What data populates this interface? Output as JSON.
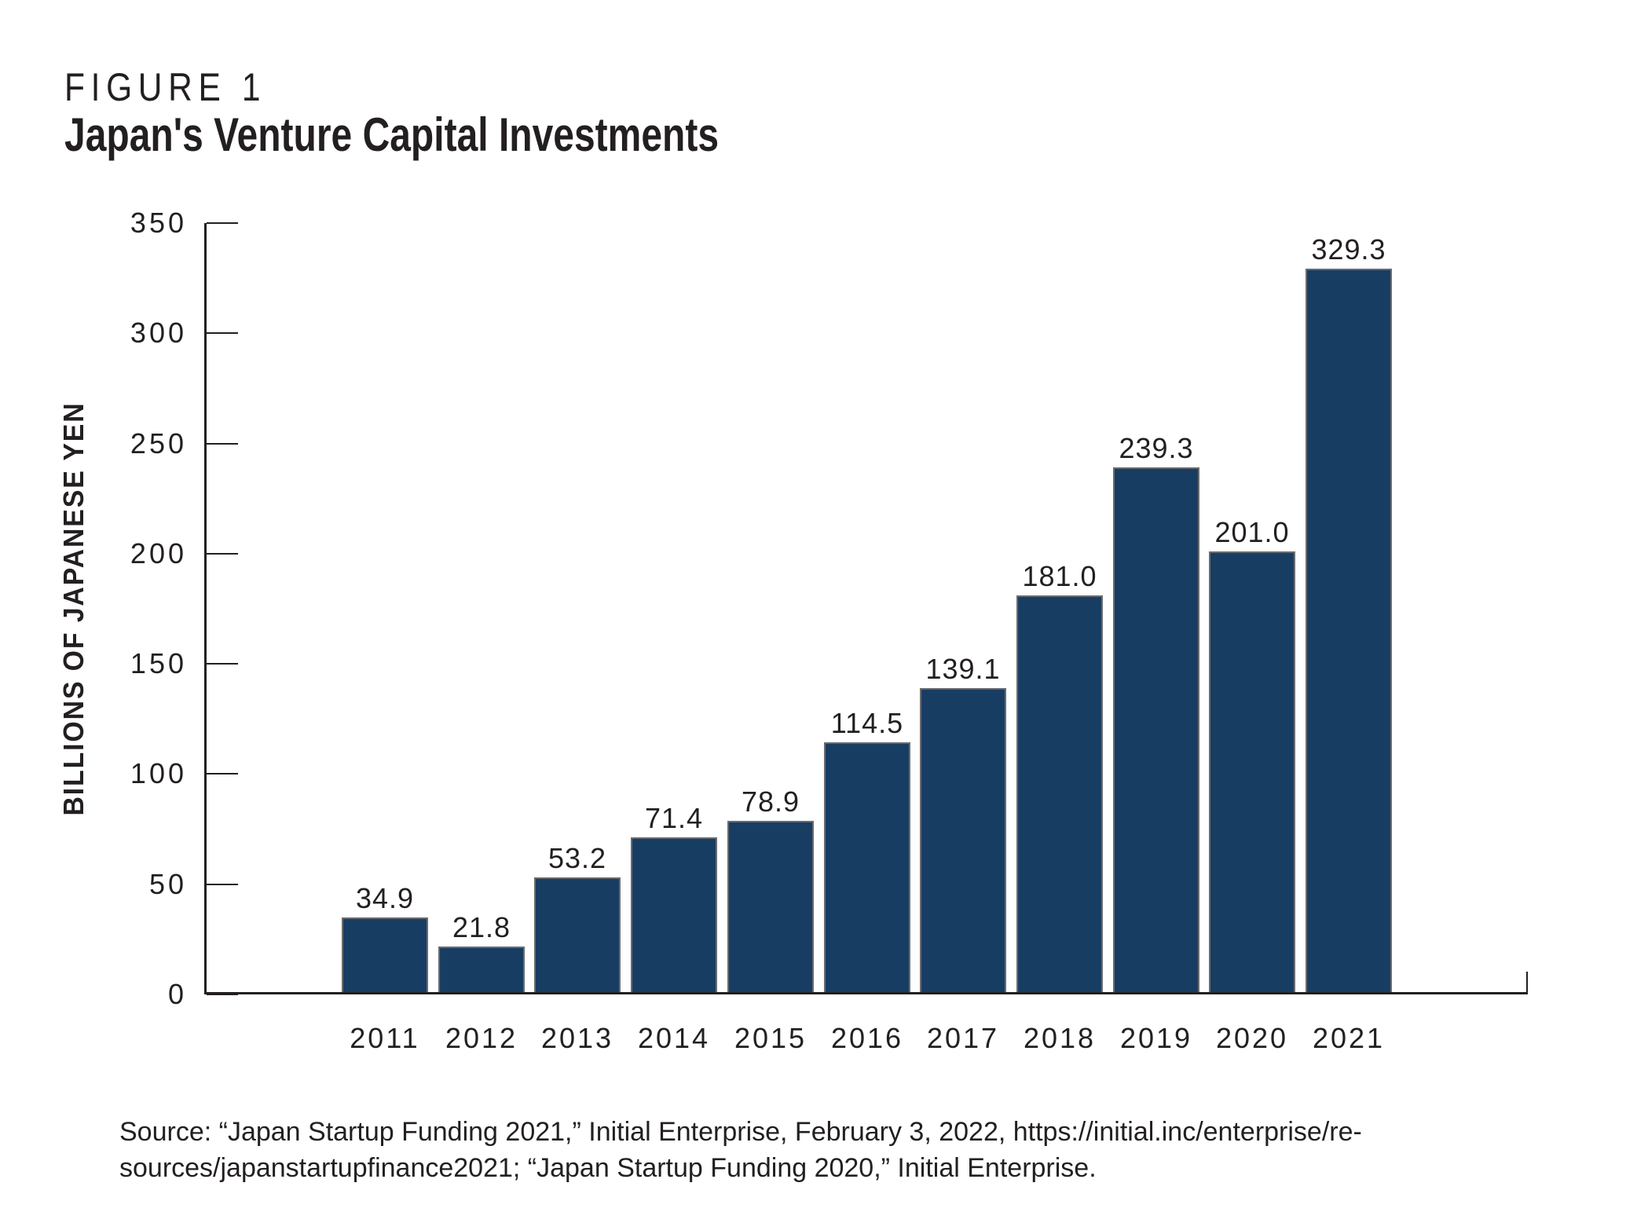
{
  "figure": {
    "label": "FIGURE 1",
    "title": "Japan's Venture Capital Investments"
  },
  "chart_data": {
    "type": "bar",
    "title": "Japan's Venture Capital Investments",
    "categories": [
      "2011",
      "2012",
      "2013",
      "2014",
      "2015",
      "2016",
      "2017",
      "2018",
      "2019",
      "2020",
      "2021"
    ],
    "values": [
      34.9,
      21.8,
      53.2,
      71.4,
      78.9,
      114.5,
      139.1,
      181.0,
      239.3,
      201.0,
      329.3
    ],
    "value_labels": [
      "34.9",
      "21.8",
      "53.2",
      "71.4",
      "78.9",
      "114.5",
      "139.1",
      "181.0",
      "239.3",
      "201.0",
      "329.3"
    ],
    "xlabel": "",
    "ylabel": "BILLIONS OF JAPANESE YEN",
    "ylim": [
      0,
      350
    ],
    "yticks": [
      0,
      50,
      100,
      150,
      200,
      250,
      300,
      350
    ],
    "grid": false,
    "legend": "none",
    "bar_color": "#183D63",
    "bar_border_color": "#6A6C6F",
    "axis_color": "#231F20",
    "text_color": "#231F20"
  },
  "source": {
    "line1": "Source: “Japan Startup Funding 2021,” Initial Enterprise, February 3, 2022, https://initial.inc/enterprise/re-",
    "line2": "sources/japanstartupfinance2021; “Japan Startup Funding 2020,” Initial Enterprise."
  }
}
